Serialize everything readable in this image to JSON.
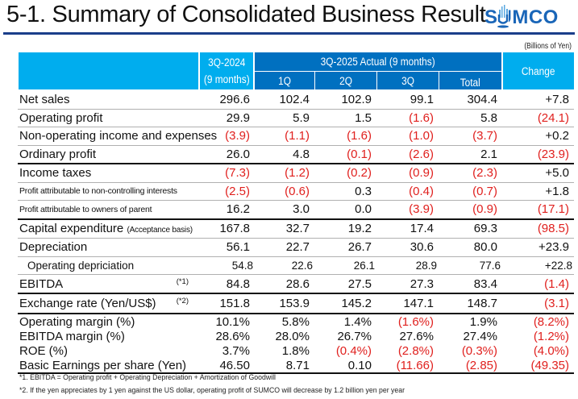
{
  "page": {
    "title": "5-1. Summary of Consolidated Business Result",
    "logo": "SUMCO",
    "unit": "(Billions of Yen)"
  },
  "colors": {
    "header_light": "#00adee",
    "header_dark": "#0070c0",
    "negative": "#e0201e",
    "rule": "#1a3e8a",
    "logo": "#1a66b8"
  },
  "table": {
    "headers": {
      "prev_line1": "3Q-2024",
      "prev_line2": "(9 months)",
      "current_group": "3Q-2025  Actual (9 months)",
      "q1": "1Q",
      "q2": "2Q",
      "q3": "3Q",
      "total": "Total",
      "change": "Change"
    },
    "rows": [
      {
        "label": "Net sales",
        "note": "",
        "values": [
          "296.6",
          "102.4",
          "102.9",
          "99.1",
          "304.4",
          "+7.8"
        ]
      },
      {
        "label": "Operating profit",
        "note": "",
        "values": [
          "29.9",
          "5.9",
          "1.5",
          "(1.6)",
          "5.8",
          "(24.1)"
        ]
      },
      {
        "label": "Non-operating income and expenses",
        "note": "",
        "values": [
          "(3.9)",
          "(1.1)",
          "(1.6)",
          "(1.0)",
          "(3.7)",
          "+0.2"
        ]
      },
      {
        "label": "Ordinary profit",
        "note": "",
        "values": [
          "26.0",
          "4.8",
          "(0.1)",
          "(2.6)",
          "2.1",
          "(23.9)"
        ]
      },
      {
        "label": "Income taxes",
        "note": "",
        "values": [
          "(7.3)",
          "(1.2)",
          "(0.2)",
          "(0.9)",
          "(2.3)",
          "+5.0"
        ]
      },
      {
        "label": "Profit attributable to non-controlling interests",
        "note": "",
        "values": [
          "(2.5)",
          "(0.6)",
          "0.3",
          "(0.4)",
          "(0.7)",
          "+1.8"
        ]
      },
      {
        "label": "Profit attributable to owners of parent",
        "note": "",
        "values": [
          "16.2",
          "3.0",
          "0.0",
          "(3.9)",
          "(0.9)",
          "(17.1)"
        ]
      },
      {
        "label": "Capital expenditure",
        "sublabel": "(Acceptance basis)",
        "note": "",
        "values": [
          "167.8",
          "32.7",
          "19.2",
          "17.4",
          "69.3",
          "(98.5)"
        ]
      },
      {
        "label": "Depreciation",
        "note": "",
        "values": [
          "56.1",
          "22.7",
          "26.7",
          "30.6",
          "80.0",
          "+23.9"
        ]
      },
      {
        "label": "Operating depriciation",
        "note": "",
        "values": [
          "54.8",
          "22.6",
          "26.1",
          "28.9",
          "77.6",
          "+22.8"
        ]
      },
      {
        "label": "EBITDA",
        "note": "(*1)",
        "values": [
          "84.8",
          "28.6",
          "27.5",
          "27.3",
          "83.4",
          "(1.4)"
        ]
      },
      {
        "label": "Exchange rate (Yen/US$)",
        "note": "(*2)",
        "values": [
          "151.8",
          "153.9",
          "145.2",
          "147.1",
          "148.7",
          "(3.1)"
        ]
      },
      {
        "label": "Operating margin (%)",
        "note": "",
        "values": [
          "10.1%",
          "5.8%",
          "1.4%",
          "(1.6%)",
          "1.9%",
          "(8.2%)"
        ]
      },
      {
        "label": "EBITDA margin (%)",
        "note": "",
        "values": [
          "28.6%",
          "28.0%",
          "26.7%",
          "27.6%",
          "27.4%",
          "(1.2%)"
        ]
      },
      {
        "label": "ROE (%)",
        "note": "",
        "values": [
          "3.7%",
          "1.8%",
          "(0.4%)",
          "(2.8%)",
          "(0.3%)",
          "(4.0%)"
        ]
      },
      {
        "label": "Basic Earnings per share (Yen)",
        "note": "",
        "values": [
          "46.50",
          "8.71",
          "0.10",
          "(11.66)",
          "(2.85)",
          "(49.35)"
        ]
      }
    ]
  },
  "footnotes": [
    "*1. EBITDA = Operating profit + Operating Depreciation + Amortization of Goodwill",
    "*2. If the yen appreciates by 1 yen against the US dollar, operating profit of SUMCO will decrease by 1.2 billion yen per year"
  ]
}
